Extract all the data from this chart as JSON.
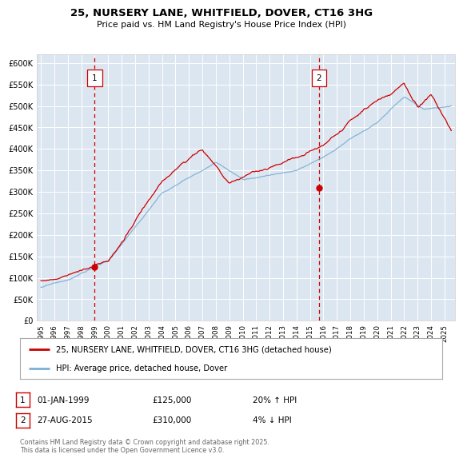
{
  "title": "25, NURSERY LANE, WHITFIELD, DOVER, CT16 3HG",
  "subtitle": "Price paid vs. HM Land Registry's House Price Index (HPI)",
  "background_color": "#dce6f1",
  "plot_bg_color": "#dce6f1",
  "ylim": [
    0,
    620000
  ],
  "yticks": [
    0,
    50000,
    100000,
    150000,
    200000,
    250000,
    300000,
    350000,
    400000,
    450000,
    500000,
    550000,
    600000
  ],
  "ytick_labels": [
    "£0",
    "£50K",
    "£100K",
    "£150K",
    "£200K",
    "£250K",
    "£300K",
    "£350K",
    "£400K",
    "£450K",
    "£500K",
    "£550K",
    "£600K"
  ],
  "sale1_year": 1999.0,
  "sale1_price": 125000,
  "sale2_year": 2015.67,
  "sale2_price": 310000,
  "line1_color": "#cc0000",
  "line2_color": "#7ab0d4",
  "legend1_label": "25, NURSERY LANE, WHITFIELD, DOVER, CT16 3HG (detached house)",
  "legend2_label": "HPI: Average price, detached house, Dover",
  "sale1_text_col1": "01-JAN-1999",
  "sale1_text_col2": "£125,000",
  "sale1_text_col3": "20% ↑ HPI",
  "sale2_text_col1": "27-AUG-2015",
  "sale2_text_col2": "£310,000",
  "sale2_text_col3": "4% ↓ HPI",
  "footnote": "Contains HM Land Registry data © Crown copyright and database right 2025.\nThis data is licensed under the Open Government Licence v3.0.",
  "xlim_start": 1994.7,
  "xlim_end": 2025.8,
  "xtick_years": [
    1995,
    1996,
    1997,
    1998,
    1999,
    2000,
    2001,
    2002,
    2003,
    2004,
    2005,
    2006,
    2007,
    2008,
    2009,
    2010,
    2011,
    2012,
    2013,
    2014,
    2015,
    2016,
    2017,
    2018,
    2019,
    2020,
    2021,
    2022,
    2023,
    2024,
    2025
  ]
}
